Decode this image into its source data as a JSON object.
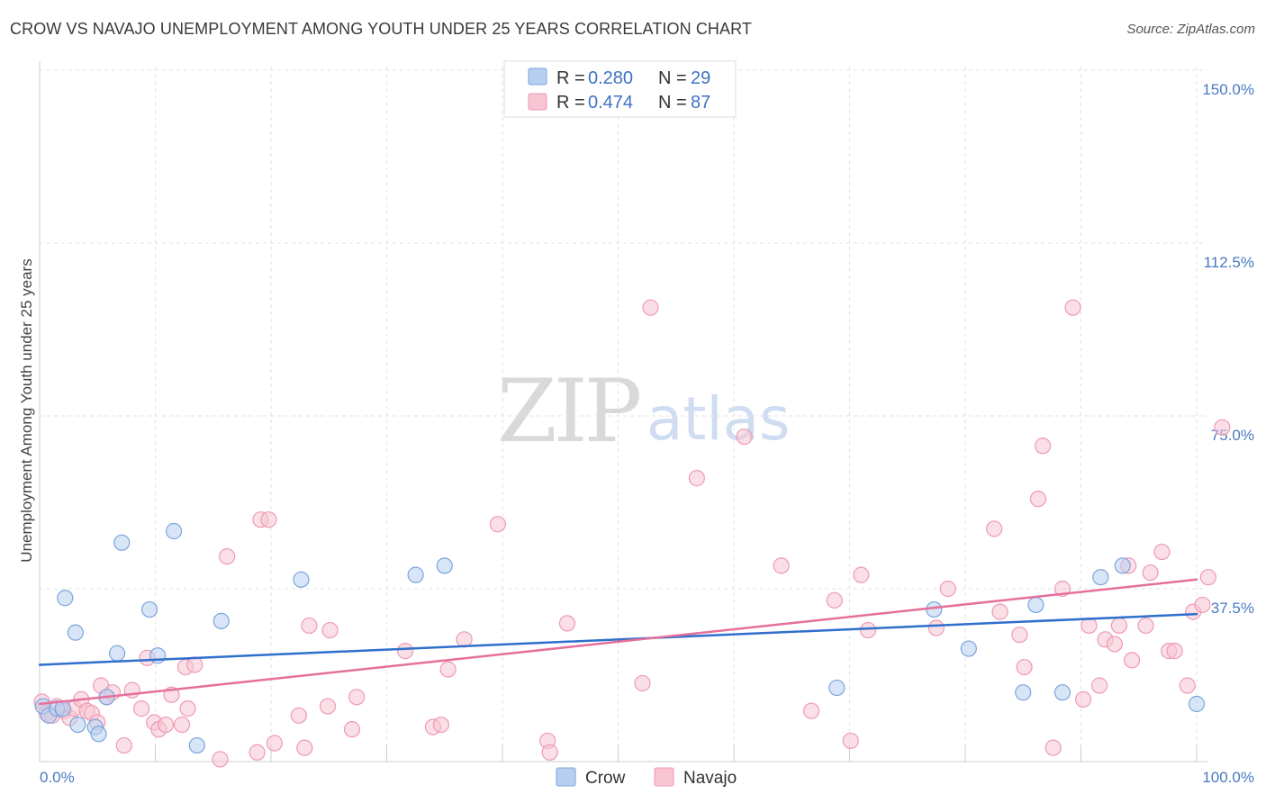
{
  "title": "CROW VS NAVAJO UNEMPLOYMENT AMONG YOUTH UNDER 25 YEARS CORRELATION CHART",
  "source": "Source: ZipAtlas.com",
  "watermark": {
    "zip": "ZIP",
    "atlas": "atlas"
  },
  "colors": {
    "crow_fill": "#b8d0f0",
    "crow_stroke": "#7aa5dc",
    "crow_line": "#2f6fcc",
    "navajo_fill": "#f8c4d4",
    "navajo_stroke": "#ee9ab4",
    "navajo_line": "#e5709a",
    "grid": "#e2e2e2",
    "tick_label": "#4a78c2"
  },
  "legend": {
    "r_label": "R =",
    "n_label": "N =",
    "crow": {
      "r": "0.280",
      "n": "29"
    },
    "navajo": {
      "r": "0.474",
      "n": "87"
    }
  },
  "chart_data": {
    "type": "scatter",
    "title": "CROW VS NAVAJO UNEMPLOYMENT AMONG YOUTH UNDER 25 YEARS CORRELATION CHART",
    "xlabel": "",
    "ylabel": "Unemployment Among Youth under 25 years",
    "xlim": [
      0,
      100
    ],
    "ylim": [
      0,
      150
    ],
    "x_tick_labels": [
      "0.0%",
      "100.0%"
    ],
    "y_ticks": [
      37.5,
      75.0,
      112.5,
      150.0
    ],
    "y_tick_labels": [
      "37.5%",
      "75.0%",
      "112.5%",
      "150.0%"
    ],
    "grid": true,
    "legend_position": "top-center",
    "series": [
      {
        "name": "Crow",
        "trend": {
          "x": [
            0,
            100
          ],
          "y": [
            21.0,
            32.0
          ]
        },
        "points": [
          [
            0.3,
            12.0
          ],
          [
            0.8,
            10.0
          ],
          [
            1.5,
            11.5
          ],
          [
            2.0,
            11.5
          ],
          [
            2.2,
            35.5
          ],
          [
            3.1,
            28.0
          ],
          [
            3.3,
            8.0
          ],
          [
            4.8,
            7.5
          ],
          [
            5.1,
            6.0
          ],
          [
            5.8,
            14.0
          ],
          [
            6.7,
            23.5
          ],
          [
            7.1,
            47.5
          ],
          [
            9.5,
            33.0
          ],
          [
            10.2,
            23.0
          ],
          [
            11.6,
            50.0
          ],
          [
            13.6,
            3.5
          ],
          [
            15.7,
            30.5
          ],
          [
            22.6,
            39.5
          ],
          [
            32.5,
            40.5
          ],
          [
            35.0,
            42.5
          ],
          [
            68.9,
            16.0
          ],
          [
            77.3,
            33.0
          ],
          [
            80.3,
            24.5
          ],
          [
            85.0,
            15.0
          ],
          [
            86.1,
            34.0
          ],
          [
            88.4,
            15.0
          ],
          [
            91.7,
            40.0
          ],
          [
            93.6,
            42.5
          ],
          [
            100.0,
            12.5
          ]
        ]
      },
      {
        "name": "Navajo",
        "trend": {
          "x": [
            0,
            100
          ],
          "y": [
            12.5,
            39.5
          ]
        },
        "points": [
          [
            0.2,
            13.0
          ],
          [
            0.6,
            10.5
          ],
          [
            1.1,
            10.0
          ],
          [
            1.5,
            12.0
          ],
          [
            2.1,
            11.0
          ],
          [
            2.6,
            9.5
          ],
          [
            3.0,
            11.5
          ],
          [
            3.6,
            13.5
          ],
          [
            4.1,
            11.0
          ],
          [
            4.5,
            10.5
          ],
          [
            5.0,
            8.5
          ],
          [
            5.3,
            16.5
          ],
          [
            5.8,
            14.0
          ],
          [
            6.3,
            15.0
          ],
          [
            7.3,
            3.5
          ],
          [
            8.0,
            15.5
          ],
          [
            8.8,
            11.5
          ],
          [
            9.3,
            22.5
          ],
          [
            9.9,
            8.5
          ],
          [
            10.3,
            7.0
          ],
          [
            10.9,
            8.0
          ],
          [
            11.4,
            14.5
          ],
          [
            12.3,
            8.0
          ],
          [
            12.6,
            20.5
          ],
          [
            12.8,
            11.5
          ],
          [
            13.4,
            21.0
          ],
          [
            15.6,
            0.5
          ],
          [
            16.2,
            44.5
          ],
          [
            18.8,
            2.0
          ],
          [
            19.1,
            52.5
          ],
          [
            19.8,
            52.5
          ],
          [
            20.3,
            4.0
          ],
          [
            22.4,
            10.0
          ],
          [
            22.9,
            3.0
          ],
          [
            23.3,
            29.5
          ],
          [
            24.9,
            12.0
          ],
          [
            25.1,
            28.5
          ],
          [
            27.0,
            7.0
          ],
          [
            27.4,
            14.0
          ],
          [
            31.6,
            24.0
          ],
          [
            34.0,
            7.5
          ],
          [
            34.7,
            8.0
          ],
          [
            35.3,
            20.0
          ],
          [
            36.7,
            26.5
          ],
          [
            39.6,
            51.5
          ],
          [
            43.9,
            4.5
          ],
          [
            44.1,
            2.0
          ],
          [
            45.6,
            30.0
          ],
          [
            52.1,
            17.0
          ],
          [
            52.8,
            98.5
          ],
          [
            56.8,
            61.5
          ],
          [
            60.9,
            70.5
          ],
          [
            64.1,
            42.5
          ],
          [
            66.7,
            11.0
          ],
          [
            68.7,
            35.0
          ],
          [
            70.1,
            4.5
          ],
          [
            71.0,
            40.5
          ],
          [
            71.6,
            28.5
          ],
          [
            78.5,
            37.5
          ],
          [
            77.5,
            29.0
          ],
          [
            82.5,
            50.5
          ],
          [
            83.0,
            32.5
          ],
          [
            84.7,
            27.5
          ],
          [
            85.1,
            20.5
          ],
          [
            86.3,
            57.0
          ],
          [
            86.7,
            68.5
          ],
          [
            87.6,
            3.0
          ],
          [
            88.4,
            37.5
          ],
          [
            89.3,
            98.5
          ],
          [
            90.2,
            13.5
          ],
          [
            90.7,
            29.5
          ],
          [
            91.6,
            16.5
          ],
          [
            92.1,
            26.5
          ],
          [
            92.9,
            25.5
          ],
          [
            93.3,
            29.5
          ],
          [
            94.1,
            42.5
          ],
          [
            94.4,
            22.0
          ],
          [
            95.6,
            29.5
          ],
          [
            96.0,
            41.0
          ],
          [
            97.0,
            45.5
          ],
          [
            97.6,
            24.0
          ],
          [
            98.1,
            24.0
          ],
          [
            99.2,
            16.5
          ],
          [
            99.7,
            32.5
          ],
          [
            100.5,
            34.0
          ],
          [
            101.0,
            40.0
          ],
          [
            102.2,
            72.5
          ]
        ]
      }
    ]
  }
}
